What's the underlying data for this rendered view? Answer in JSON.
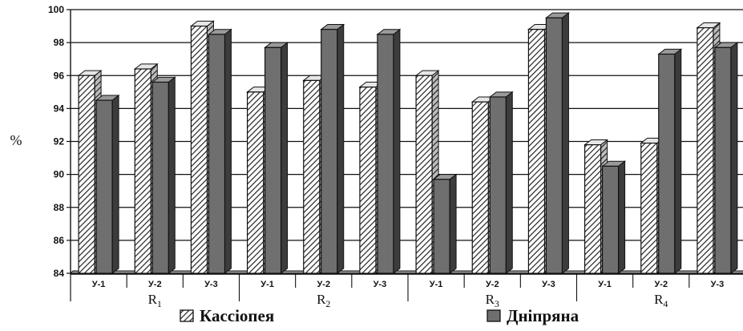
{
  "chart_data": {
    "type": "bar",
    "ylabel": "%",
    "ylim": [
      84,
      100
    ],
    "yticks": [
      84,
      86,
      88,
      90,
      92,
      94,
      96,
      98,
      100
    ],
    "grid": true,
    "legend_position": "bottom",
    "categories": [
      "У-1",
      "У-2",
      "У-3",
      "У-1",
      "У-2",
      "У-3",
      "У-1",
      "У-2",
      "У-3",
      "У-1",
      "У-2",
      "У-3"
    ],
    "groups": [
      {
        "label": "R",
        "sub": "1"
      },
      {
        "label": "R",
        "sub": "2"
      },
      {
        "label": "R",
        "sub": "3"
      },
      {
        "label": "R",
        "sub": "4"
      }
    ],
    "series": [
      {
        "name": "Кассіопея",
        "pattern": "hatched",
        "values": [
          96.0,
          96.4,
          99.0,
          95.0,
          95.7,
          95.3,
          96.0,
          94.4,
          98.8,
          91.8,
          91.9,
          98.9
        ]
      },
      {
        "name": "Дніпряна",
        "pattern": "solid",
        "color": "#6f6f6f",
        "values": [
          94.5,
          95.6,
          98.5,
          97.7,
          98.8,
          98.5,
          89.7,
          94.7,
          99.5,
          90.5,
          97.3,
          97.7
        ]
      }
    ]
  }
}
